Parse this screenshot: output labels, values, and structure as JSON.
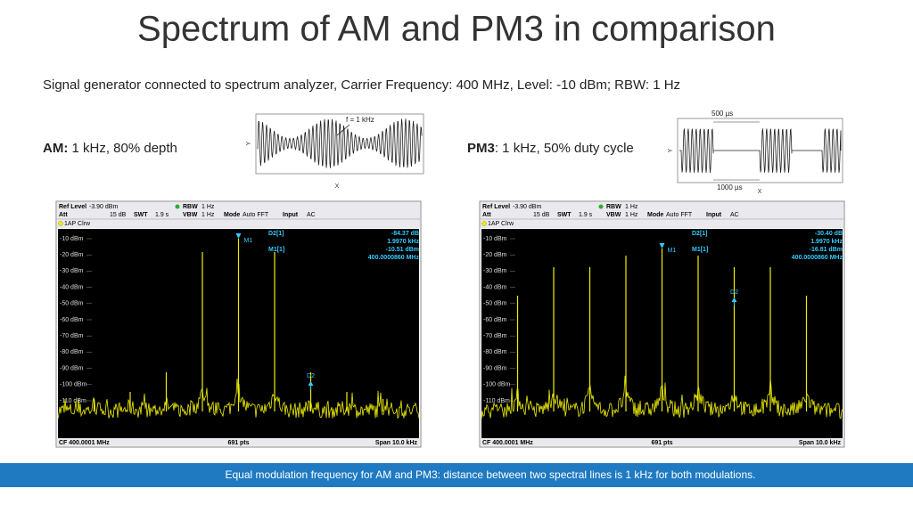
{
  "title": "Spectrum of AM and PM3 in comparison",
  "subtitle": "Signal generator connected to spectrum analyzer, Carrier Frequency: 400 MHz, Level: -10 dBm; RBW: 1 Hz",
  "am": {
    "label": "AM:",
    "text": " 1 kHz, 80% depth",
    "diagram": {
      "note": "f = 1 kHz",
      "y": "Y",
      "x": "X"
    },
    "analyzer": {
      "header": {
        "ref_level": [
          "Ref Level",
          "-3.90 dBm"
        ],
        "rbw": [
          "RBW",
          "1 Hz"
        ],
        "att": [
          "Att",
          "15 dB"
        ],
        "swt": [
          "SWT",
          "1.9 s"
        ],
        "vbw": [
          "VBW",
          "1 Hz"
        ],
        "mode": [
          "Mode",
          "Auto FFT"
        ],
        "input": [
          "Input",
          "AC"
        ]
      },
      "trace": "1AP Clrw",
      "markers": {
        "d2": [
          "D2[1]",
          "-84.37 dB",
          "1.9970 kHz"
        ],
        "m1": [
          "M1[1]",
          "-10.51 dBm",
          "400.0000860 MHz"
        ]
      },
      "marker_tags": [
        "M1",
        "D2"
      ],
      "y_labels": [
        "-10 dBm",
        "-20 dBm",
        "-30 dBm",
        "-40 dBm",
        "-50 dBm",
        "-60 dBm",
        "-70 dBm",
        "-80 dBm",
        "-90 dBm",
        "-100 dBm",
        "-110 dBm"
      ],
      "footer": [
        "CF 400.0001 MHz",
        "691 pts",
        "Span 10.0 kHz"
      ]
    }
  },
  "pm3": {
    "label": "PM3",
    "text": ": 1 kHz, 50% duty cycle",
    "diagram": {
      "top": "500 µs",
      "bottom": "1000 µs",
      "y": "Y",
      "x": "X"
    },
    "analyzer": {
      "header": {
        "ref_level": [
          "Ref Level",
          "-3.90 dBm"
        ],
        "rbw": [
          "RBW",
          "1 Hz"
        ],
        "att": [
          "Att",
          "15 dB"
        ],
        "swt": [
          "SWT",
          "1.9 s"
        ],
        "vbw": [
          "VBW",
          "1 Hz"
        ],
        "mode": [
          "Mode",
          "Auto FFT"
        ],
        "input": [
          "Input",
          "AC"
        ]
      },
      "trace": "1AP Clrw",
      "markers": {
        "d2": [
          "D2[1]",
          "-30.40 dB",
          "1.9970 kHz"
        ],
        "m1": [
          "M1[1]",
          "-16.81 dBm",
          "400.0000860 MHz"
        ]
      },
      "marker_tags": [
        "M1",
        "D2"
      ],
      "y_labels": [
        "-10 dBm",
        "-20 dBm",
        "-30 dBm",
        "-40 dBm",
        "-50 dBm",
        "-60 dBm",
        "-70 dBm",
        "-80 dBm",
        "-90 dBm",
        "-100 dBm",
        "-110 dBm"
      ],
      "footer": [
        "CF 400.0001 MHz",
        "691 pts",
        "Span 10.0 kHz"
      ]
    }
  },
  "footer": "Equal modulation frequency for AM and PM3: distance between two spectral lines is 1 kHz for both modulations."
}
